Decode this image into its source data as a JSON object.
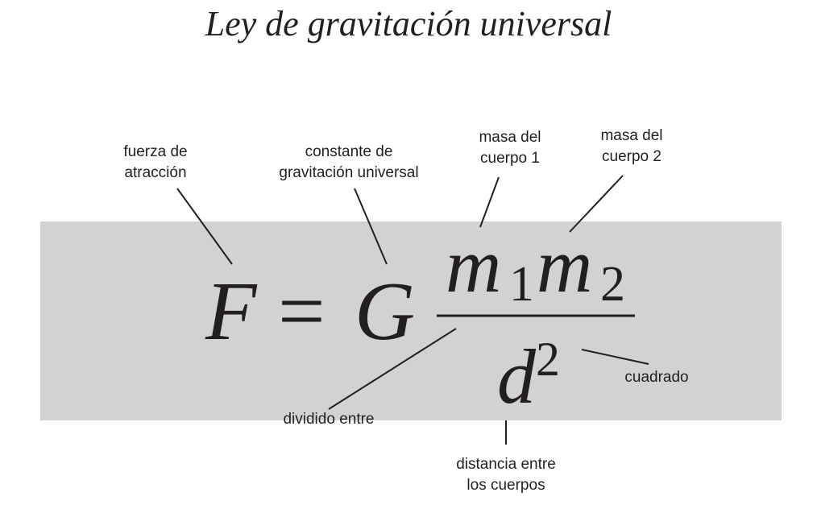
{
  "title": "Ley de gravitación universal",
  "formula": {
    "force": "F",
    "equals": "=",
    "constant": "G",
    "m1": "m",
    "m1_sub": "1",
    "m2": "m",
    "m2_sub": "2",
    "distance": "d",
    "exponent": "2"
  },
  "labels": {
    "force": "fuerza de\natracción",
    "constant": "constante de\ngravitación universal",
    "mass1": "masa del\ncuerpo 1",
    "mass2": "masa del\ncuerpo 2",
    "divided": "dividido entre",
    "squared": "cuadrado",
    "distance": "distancia entre\nlos cuerpos"
  },
  "colors": {
    "band": "#d3d2d2",
    "ink": "#231f20"
  }
}
